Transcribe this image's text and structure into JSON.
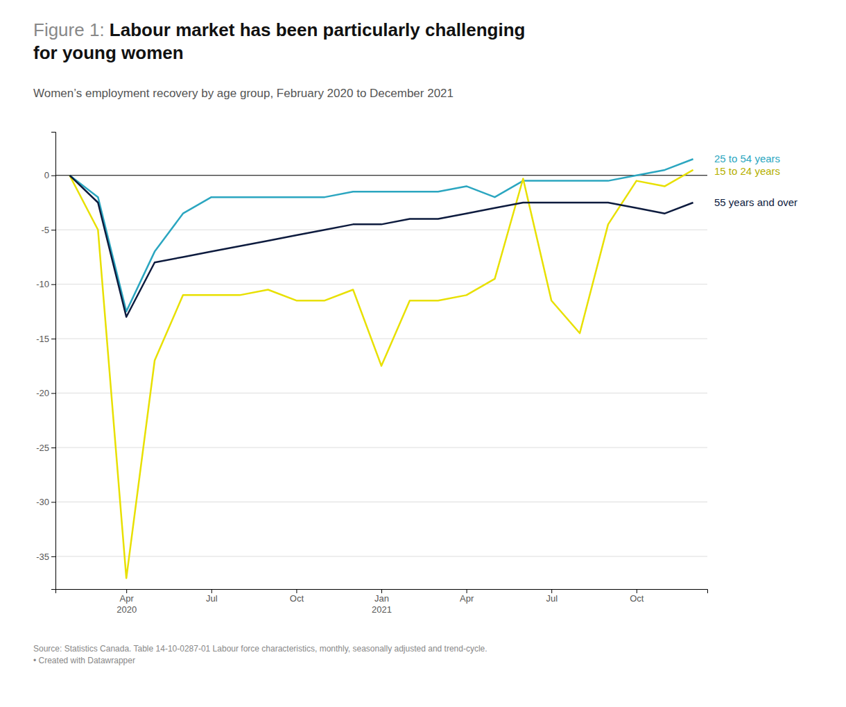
{
  "chart_data": {
    "type": "line",
    "title": "Labour market has been particularly challenging\nfor young women",
    "title_prefix": "Figure 1: ",
    "subtitle": "Women’s employment recovery by age group, February 2020 to December 2021",
    "source": "Source: Statistics Canada. Table 14-10-0287-01 Labour force characteristics, monthly, seasonally adjusted and trend-cycle.\n• Created with Datawrapper",
    "categories": [
      null,
      null,
      "Apr 2020",
      null,
      null,
      "Jul",
      null,
      null,
      "Oct",
      null,
      null,
      "Jan 2021",
      null,
      null,
      "Apr",
      null,
      null,
      "Jul",
      null,
      null,
      "Oct",
      null,
      null
    ],
    "series": [
      {
        "name": "25 to 54 years",
        "color": "#2ba6c0",
        "values": [
          0,
          -2.0,
          -12.5,
          -7.0,
          -3.5,
          -2.0,
          -2.0,
          -2.0,
          -2.0,
          -2.0,
          -1.5,
          -1.5,
          -1.5,
          -1.5,
          -1.0,
          -2.0,
          -0.5,
          -0.5,
          -0.5,
          -0.5,
          0.0,
          0.5,
          1.5
        ]
      },
      {
        "name": "15 to 24 years",
        "color": "#e8e000",
        "values": [
          0,
          -5.0,
          -37.0,
          -17.0,
          -11.0,
          -11.0,
          -11.0,
          -10.5,
          -11.5,
          -11.5,
          -10.5,
          -17.5,
          -11.5,
          -11.5,
          -11.0,
          -9.5,
          -0.3,
          -11.5,
          -14.5,
          -4.5,
          -0.5,
          -1.0,
          0.5
        ]
      },
      {
        "name": "55 years and over",
        "color": "#0d1b3e",
        "values": [
          0,
          -2.5,
          -13.0,
          -8.0,
          -7.5,
          -7.0,
          -6.5,
          -6.0,
          -5.5,
          -5.0,
          -4.5,
          -4.5,
          -4.0,
          -4.0,
          -3.5,
          -3.0,
          -2.5,
          -2.5,
          -2.5,
          -2.5,
          -3.0,
          -3.5,
          -2.5
        ]
      }
    ],
    "ylim": [
      -38,
      4
    ],
    "yticks": [
      0,
      -5,
      -10,
      -15,
      -20,
      -25,
      -30,
      -35
    ],
    "grid": true
  }
}
